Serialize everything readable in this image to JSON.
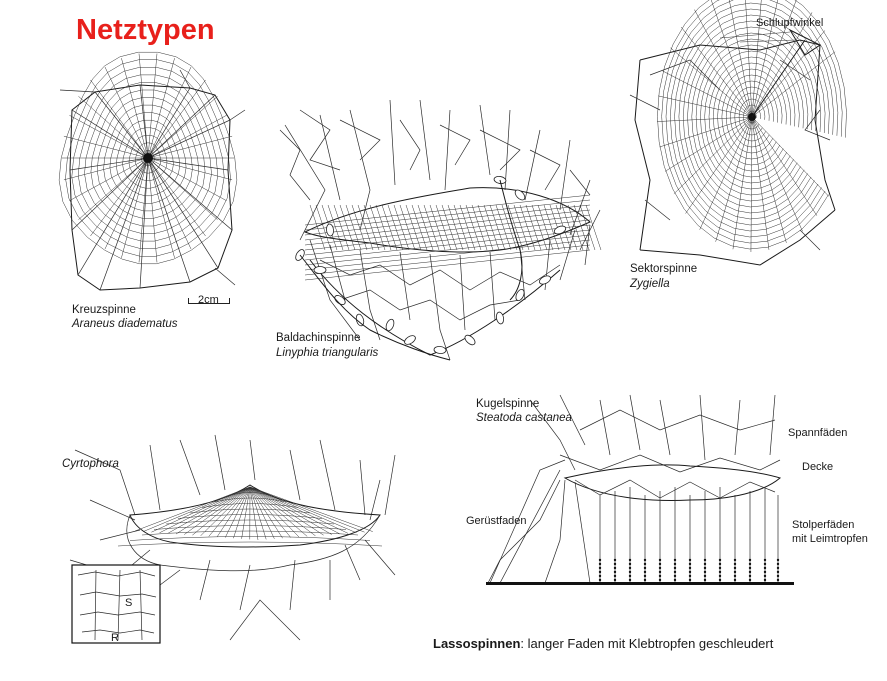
{
  "title": "Netztypen",
  "webs": {
    "kreuzspinne": {
      "name": "Kreuzspinne",
      "species": "Araneus diadematus",
      "scale": "2cm"
    },
    "baldachinspinne": {
      "name": "Baldachinspinne",
      "species": "Linyphia triangularis"
    },
    "sektorspinne": {
      "name": "Sektorspinne",
      "species": "Zygiella",
      "retreat": "Schlupfwinkel"
    },
    "cyrtophora": {
      "species": "Cyrtophora",
      "inset_s": "S",
      "inset_r": "R"
    },
    "kugelspinne": {
      "name": "Kugelspinne",
      "species": "Steatoda castanea",
      "annotations": {
        "spannfaeden": "Spannfäden",
        "decke": "Decke",
        "geruestfaden": "Gerüstfaden",
        "stolperfaeden": "Stolperfäden mit Leimtropfen"
      }
    }
  },
  "caption": {
    "bold": "Lassospinnen",
    "rest": ": langer Faden mit Klebtropfen geschleudert"
  }
}
